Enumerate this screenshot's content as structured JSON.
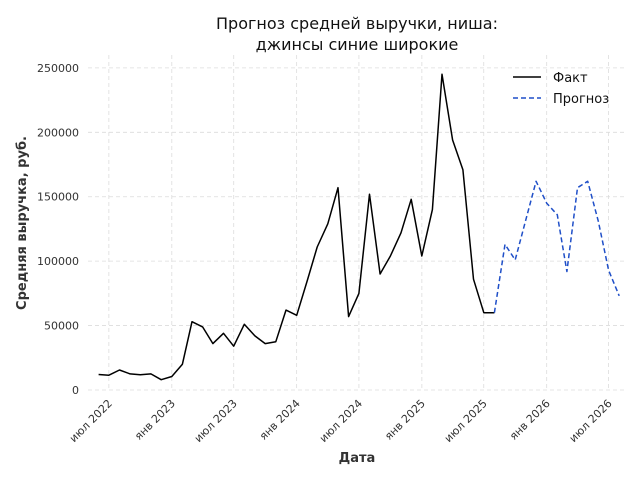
{
  "chart_data": {
    "type": "line",
    "title": [
      "Прогноз средней выручки, ниша:",
      "джинсы синие широкие"
    ],
    "xlabel": "Дата",
    "ylabel": "Средняя выручка, руб.",
    "ylim": [
      0,
      260000
    ],
    "y_ticks": [
      0,
      50000,
      100000,
      150000,
      200000,
      250000
    ],
    "y_tick_labels": [
      "0",
      "50000",
      "100000",
      "150000",
      "200000",
      "250000"
    ],
    "x_range": [
      "2022-05-01",
      "2026-08-15"
    ],
    "x_ticks": [
      "2022-07-01",
      "2023-01-01",
      "2023-07-01",
      "2024-01-01",
      "2024-07-01",
      "2025-01-01",
      "2025-07-01",
      "2026-01-01",
      "2026-07-01"
    ],
    "x_tick_labels": [
      "июл 2022",
      "янв 2023",
      "июл 2023",
      "янв 2024",
      "июл 2024",
      "янв 2025",
      "июл 2025",
      "янв 2026",
      "июл 2026"
    ],
    "grid": true,
    "legend_position": "top-right",
    "colors": {
      "fact": "#000000",
      "forecast": "#1f4fc8"
    },
    "series": [
      {
        "name": "Факт",
        "style": "solid",
        "x": [
          "2022-06-01",
          "2022-07-01",
          "2022-08-01",
          "2022-09-01",
          "2022-10-01",
          "2022-11-01",
          "2022-12-01",
          "2023-01-01",
          "2023-02-01",
          "2023-03-01",
          "2023-04-01",
          "2023-05-01",
          "2023-06-01",
          "2023-07-01",
          "2023-08-01",
          "2023-09-01",
          "2023-10-01",
          "2023-11-01",
          "2023-12-01",
          "2024-01-01",
          "2024-02-01",
          "2024-03-01",
          "2024-04-01",
          "2024-05-01",
          "2024-06-01",
          "2024-07-01",
          "2024-08-01",
          "2024-09-01",
          "2024-10-01",
          "2024-11-01",
          "2024-12-01",
          "2025-01-01",
          "2025-02-01",
          "2025-03-01",
          "2025-04-01",
          "2025-05-01",
          "2025-06-01",
          "2025-07-01",
          "2025-08-01"
        ],
        "values": [
          12000,
          11500,
          15500,
          12500,
          11800,
          12500,
          8000,
          10500,
          20000,
          53000,
          49000,
          36000,
          44000,
          34000,
          51000,
          42000,
          36000,
          37500,
          62000,
          58000,
          85000,
          111000,
          129000,
          157000,
          57000,
          75000,
          152000,
          90000,
          104000,
          122000,
          148000,
          104000,
          140000,
          245000,
          194000,
          171000,
          86000,
          60000,
          60000
        ]
      },
      {
        "name": "Прогноз",
        "style": "dashed",
        "x": [
          "2025-08-01",
          "2025-09-01",
          "2025-10-01",
          "2025-11-01",
          "2025-12-01",
          "2026-01-01",
          "2026-02-01",
          "2026-03-01",
          "2026-04-01",
          "2026-05-01",
          "2026-06-01",
          "2026-07-01",
          "2026-08-01"
        ],
        "values": [
          60000,
          113000,
          101000,
          132000,
          162000,
          145000,
          136000,
          92000,
          157000,
          162000,
          131000,
          93000,
          73000
        ]
      }
    ]
  }
}
